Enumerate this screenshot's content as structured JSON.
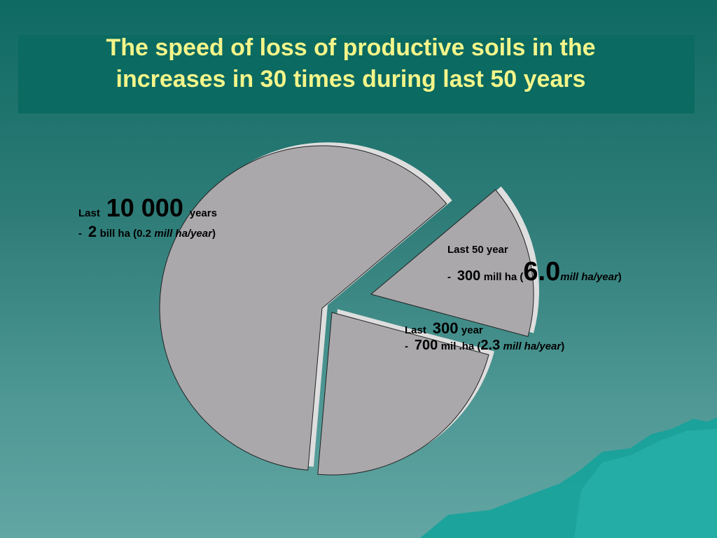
{
  "title": {
    "line1": "The speed of loss of productive soils in the",
    "line2": "increases in 30 times  during last 50 years"
  },
  "colors": {
    "slice_fill": "#aaa8ab",
    "slice_side": "#dedede",
    "title_text": "#f3f58a",
    "title_band": "#0b6a61",
    "mountain": "#14a39b"
  },
  "labels": {
    "l10000": {
      "word_last": "Last",
      "number": "10 000",
      "unit": "years",
      "dash": "-",
      "amount": "2",
      "amount_unit": "bill  ha (0.2",
      "rate_unit": "mill ha/year",
      "close": ")"
    },
    "l50": {
      "line1": "Last  50 year",
      "dash": "-",
      "amount": "300",
      "amount_unit": "mill  ha  (",
      "rate": "6.0",
      "rate_unit": "mill ha/year",
      "close": ")"
    },
    "l300": {
      "word_last": "Last",
      "number": "300",
      "unit": "year",
      "dash": "-",
      "amount": "700",
      "amount_unit": "mil .ha (",
      "rate": "2.3",
      "rate_unit": "mill ha/year",
      "close": ")"
    }
  },
  "chart_data": {
    "type": "pie",
    "exploded": true,
    "slices": [
      {
        "period": "Last 10 000 years",
        "loss_bill_ha": 2,
        "rate_mill_ha_per_year": 0.2,
        "share": 0.625
      },
      {
        "period": "Last 300 year",
        "loss_mill_ha": 700,
        "rate_mill_ha_per_year": 2.3,
        "share": 0.222
      },
      {
        "period": "Last 50 year",
        "loss_mill_ha": 300,
        "rate_mill_ha_per_year": 6.0,
        "share": 0.153
      }
    ]
  }
}
